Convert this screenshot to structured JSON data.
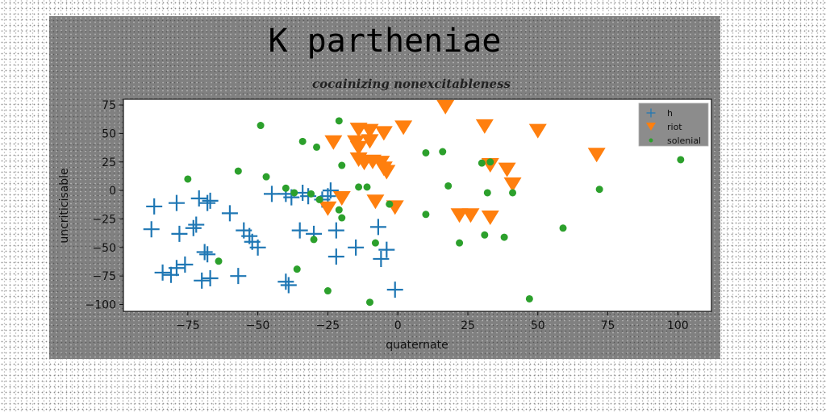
{
  "chart_data": {
    "type": "scatter",
    "title": "K partheniae",
    "subtitle": "cocainizing nonexcitableness",
    "xlabel": "quaternate",
    "ylabel": "uncriticisable",
    "xlim": [
      -98,
      112
    ],
    "ylim": [
      -106,
      80
    ],
    "xticks": [
      -75,
      -50,
      -25,
      0,
      25,
      50,
      75,
      100
    ],
    "yticks": [
      75,
      50,
      25,
      0,
      -25,
      -50,
      -75,
      -100
    ],
    "xtick_labels": [
      "−75",
      "−50",
      "−25",
      "0",
      "25",
      "50",
      "75",
      "100"
    ],
    "ytick_labels": [
      "75",
      "50",
      "25",
      "0",
      "−25",
      "−50",
      "−75",
      "−100"
    ],
    "legend_position": "top-right",
    "grid": false,
    "series": [
      {
        "name": "h",
        "marker": "plus",
        "color": "#1f77b4",
        "points": [
          [
            -87,
            -14
          ],
          [
            -88,
            -34
          ],
          [
            -79,
            -11
          ],
          [
            -78,
            -38
          ],
          [
            -73,
            -33
          ],
          [
            -72,
            -30
          ],
          [
            -71,
            -7
          ],
          [
            -67,
            -9
          ],
          [
            -68,
            -11
          ],
          [
            -60,
            -20
          ],
          [
            -55,
            -35
          ],
          [
            -53,
            -40
          ],
          [
            -52,
            -45
          ],
          [
            -50,
            -50
          ],
          [
            -69,
            -54
          ],
          [
            -68,
            -56
          ],
          [
            -76,
            -65
          ],
          [
            -79,
            -68
          ],
          [
            -84,
            -72
          ],
          [
            -81,
            -74
          ],
          [
            -70,
            -79
          ],
          [
            -67,
            -77
          ],
          [
            -57,
            -75
          ],
          [
            -45,
            -3
          ],
          [
            -40,
            -3
          ],
          [
            -38,
            -6
          ],
          [
            -34,
            -2
          ],
          [
            -32,
            -5
          ],
          [
            -27,
            -8
          ],
          [
            -25,
            -5
          ],
          [
            -24,
            0
          ],
          [
            -35,
            -35
          ],
          [
            -30,
            -38
          ],
          [
            -22,
            -35
          ],
          [
            -22,
            -58
          ],
          [
            -15,
            -50
          ],
          [
            -7,
            -32
          ],
          [
            -6,
            -60
          ],
          [
            -4,
            -52
          ],
          [
            -40,
            -80
          ],
          [
            -39,
            -83
          ],
          [
            -1,
            -87
          ]
        ]
      },
      {
        "name": "riot",
        "marker": "triangle-down",
        "color": "#ff7f0e",
        "points": [
          [
            17,
            73
          ],
          [
            -14,
            53
          ],
          [
            -10,
            52
          ],
          [
            -5,
            50
          ],
          [
            2,
            55
          ],
          [
            31,
            56
          ],
          [
            50,
            52
          ],
          [
            71,
            31
          ],
          [
            -23,
            42
          ],
          [
            -15,
            42
          ],
          [
            -14,
            37
          ],
          [
            -10,
            43
          ],
          [
            -14,
            27
          ],
          [
            -12,
            24
          ],
          [
            -9,
            25
          ],
          [
            -6,
            24
          ],
          [
            -5,
            19
          ],
          [
            -4,
            16
          ],
          [
            33,
            22
          ],
          [
            39,
            18
          ],
          [
            41,
            5
          ],
          [
            -20,
            -7
          ],
          [
            -25,
            -16
          ],
          [
            -8,
            -10
          ],
          [
            -1,
            -15
          ],
          [
            22,
            -22
          ],
          [
            26,
            -22
          ],
          [
            33,
            -24
          ]
        ]
      },
      {
        "name": "solenial",
        "marker": "circle",
        "color": "#2ca02c",
        "points": [
          [
            -49,
            57
          ],
          [
            -21,
            61
          ],
          [
            -34,
            43
          ],
          [
            -29,
            38
          ],
          [
            10,
            33
          ],
          [
            16,
            34
          ],
          [
            30,
            24
          ],
          [
            33,
            25
          ],
          [
            101,
            27
          ],
          [
            -57,
            17
          ],
          [
            -47,
            12
          ],
          [
            -75,
            10
          ],
          [
            -40,
            2
          ],
          [
            -37,
            -2
          ],
          [
            -20,
            22
          ],
          [
            -14,
            3
          ],
          [
            -11,
            3
          ],
          [
            18,
            4
          ],
          [
            32,
            -2
          ],
          [
            41,
            -2
          ],
          [
            72,
            1
          ],
          [
            -31,
            -3
          ],
          [
            -28,
            -8
          ],
          [
            -21,
            -17
          ],
          [
            -20,
            -24
          ],
          [
            -3,
            -12
          ],
          [
            10,
            -21
          ],
          [
            31,
            -39
          ],
          [
            38,
            -41
          ],
          [
            59,
            -33
          ],
          [
            -30,
            -43
          ],
          [
            -8,
            -46
          ],
          [
            22,
            -46
          ],
          [
            -64,
            -62
          ],
          [
            -36,
            -69
          ],
          [
            -25,
            -88
          ],
          [
            -10,
            -98
          ],
          [
            47,
            -95
          ]
        ]
      }
    ]
  }
}
